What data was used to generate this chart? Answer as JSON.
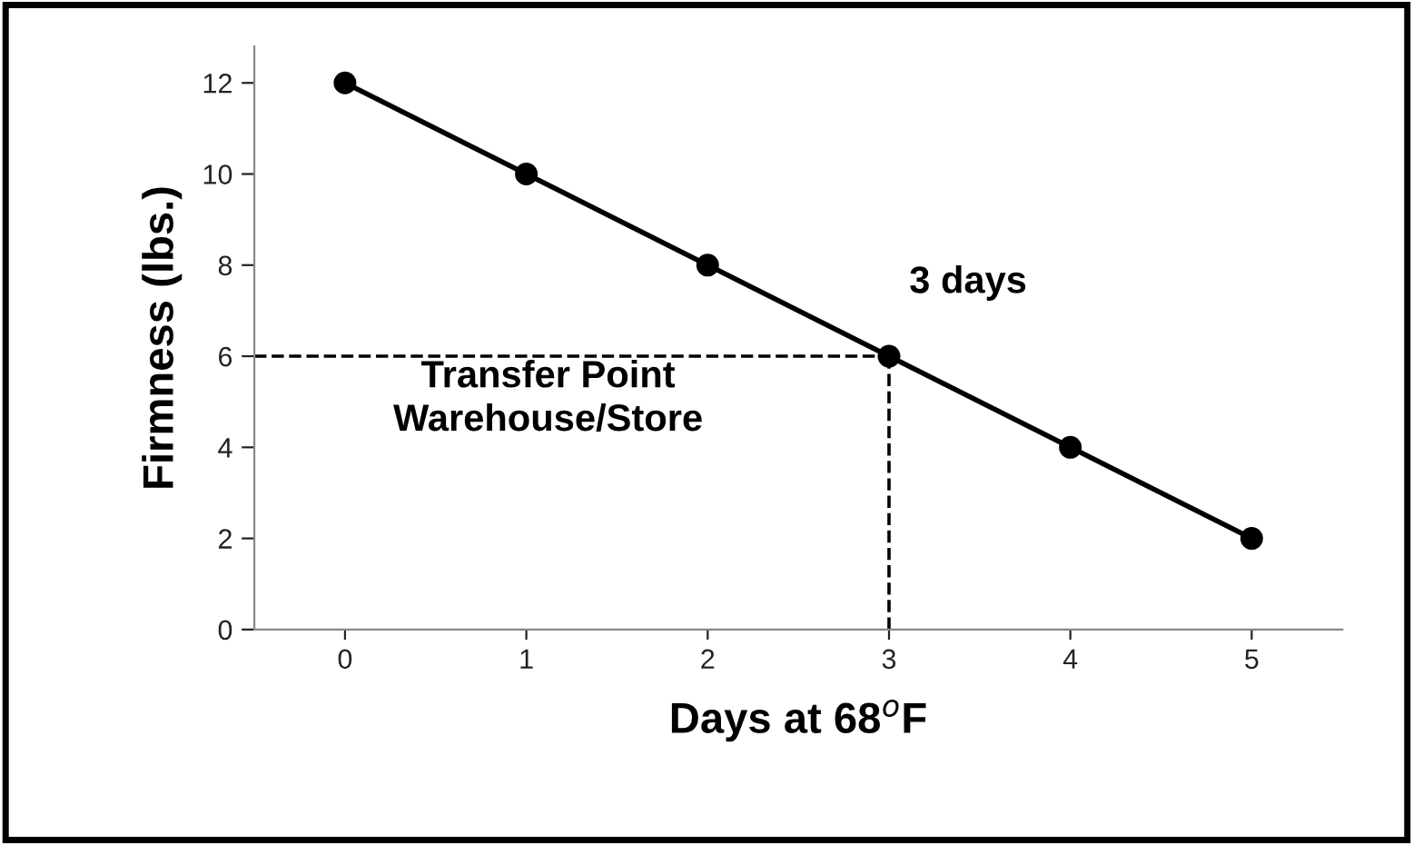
{
  "chart_data": {
    "type": "line",
    "xlabel": "Days at 68$^{o}$F",
    "ylabel": "Firmness (lbs.)",
    "x": [
      0,
      1,
      2,
      3,
      4,
      5
    ],
    "series": [
      {
        "color": "#000000",
        "values": [
          12,
          10,
          8,
          6,
          4,
          2
        ]
      }
    ],
    "xlim": [
      -0.5,
      5.5
    ],
    "xticks": [
      0,
      1,
      2,
      3,
      4,
      5
    ],
    "ylim": [
      0,
      12.8
    ],
    "yticks": [
      0,
      2,
      4,
      6,
      8,
      10,
      12
    ],
    "marker": "circle",
    "line_style": "solid",
    "grid": false,
    "legend": false,
    "ref_lines": [
      {
        "axis": "y",
        "value": 6,
        "color": "#000000",
        "line_style": "dashed"
      },
      {
        "axis": "x",
        "value": 3,
        "color": "#000000",
        "line_style": "dashed"
      }
    ],
    "annotations": [
      {
        "text": "3 days",
        "x": 3,
        "y": 6
      },
      "Transfer Point\nWarehouse/Store"
    ]
  }
}
